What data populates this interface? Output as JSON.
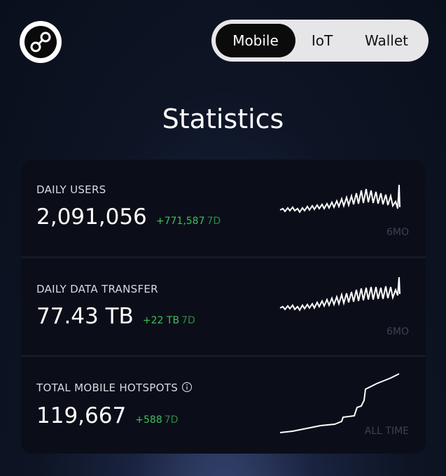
{
  "tabs": [
    "Mobile",
    "IoT",
    "Wallet"
  ],
  "title": "Statistics",
  "cards": [
    {
      "label": "DAILY USERS",
      "value": "2,091,056",
      "change": "+771,587",
      "period": "7D",
      "range": "6MO"
    },
    {
      "label": "DAILY DATA TRANSFER",
      "value": "77.43 TB",
      "change": "+22 TB",
      "period": "7D",
      "range": "6MO"
    },
    {
      "label": "TOTAL MOBILE HOTSPOTS",
      "value": "119,667",
      "change": "+588",
      "period": "7D",
      "range": "ALL TIME"
    }
  ]
}
